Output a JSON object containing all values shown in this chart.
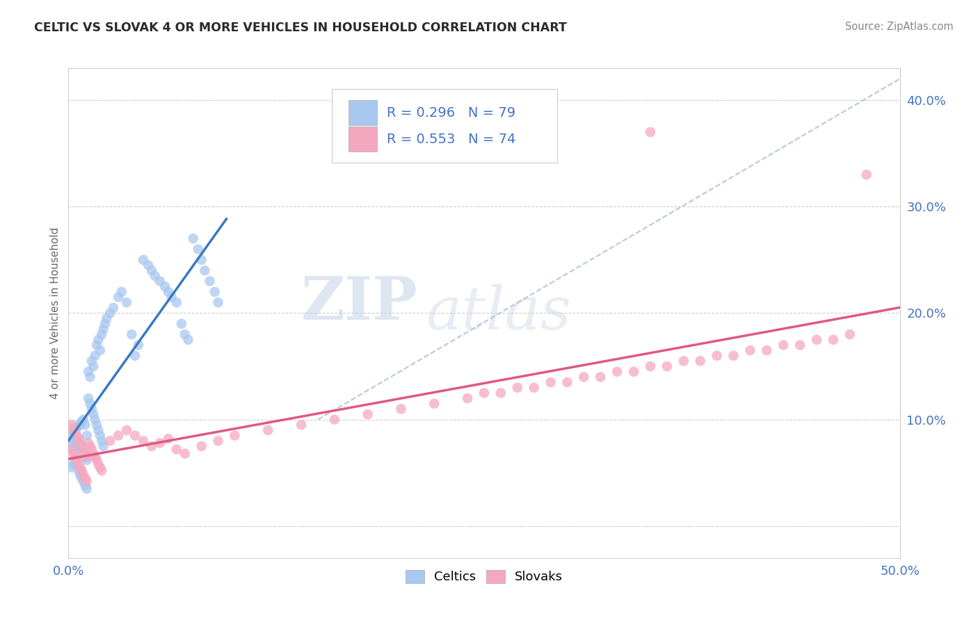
{
  "title": "CELTIC VS SLOVAK 4 OR MORE VEHICLES IN HOUSEHOLD CORRELATION CHART",
  "source": "Source: ZipAtlas.com",
  "ylabel": "4 or more Vehicles in Household",
  "xlim": [
    0.0,
    0.5
  ],
  "ylim": [
    -0.03,
    0.43
  ],
  "celtics_color": "#a8c8f0",
  "slovaks_color": "#f4a8c0",
  "celtics_line_color": "#3a7abf",
  "slovaks_line_color": "#e05880",
  "trend_line_color": "#b8c8d8",
  "legend_R_celtic": "R = 0.296",
  "legend_N_celtic": "N = 79",
  "legend_R_slovak": "R = 0.553",
  "legend_N_slovak": "N = 74",
  "watermark_zip": "ZIP",
  "watermark_atlas": "atlas",
  "celtics_x": [
    0.002,
    0.003,
    0.004,
    0.005,
    0.006,
    0.007,
    0.008,
    0.009,
    0.01,
    0.011,
    0.002,
    0.003,
    0.004,
    0.005,
    0.006,
    0.007,
    0.008,
    0.009,
    0.01,
    0.011,
    0.002,
    0.003,
    0.004,
    0.005,
    0.006,
    0.007,
    0.008,
    0.009,
    0.01,
    0.011,
    0.012,
    0.013,
    0.014,
    0.015,
    0.016,
    0.017,
    0.018,
    0.019,
    0.02,
    0.021,
    0.012,
    0.013,
    0.014,
    0.015,
    0.016,
    0.017,
    0.018,
    0.019,
    0.02,
    0.021,
    0.022,
    0.023,
    0.025,
    0.027,
    0.03,
    0.032,
    0.035,
    0.038,
    0.04,
    0.042,
    0.045,
    0.048,
    0.05,
    0.052,
    0.055,
    0.058,
    0.06,
    0.062,
    0.065,
    0.068,
    0.07,
    0.072,
    0.075,
    0.078,
    0.08,
    0.082,
    0.085,
    0.088,
    0.09
  ],
  "celtics_y": [
    0.085,
    0.088,
    0.09,
    0.092,
    0.094,
    0.096,
    0.098,
    0.1,
    0.095,
    0.085,
    0.075,
    0.078,
    0.08,
    0.082,
    0.072,
    0.074,
    0.076,
    0.068,
    0.065,
    0.062,
    0.055,
    0.058,
    0.06,
    0.062,
    0.052,
    0.048,
    0.045,
    0.042,
    0.038,
    0.035,
    0.12,
    0.115,
    0.11,
    0.105,
    0.1,
    0.095,
    0.09,
    0.085,
    0.08,
    0.075,
    0.145,
    0.14,
    0.155,
    0.15,
    0.16,
    0.17,
    0.175,
    0.165,
    0.18,
    0.185,
    0.19,
    0.195,
    0.2,
    0.205,
    0.215,
    0.22,
    0.21,
    0.18,
    0.16,
    0.17,
    0.25,
    0.245,
    0.24,
    0.235,
    0.23,
    0.225,
    0.22,
    0.215,
    0.21,
    0.19,
    0.18,
    0.175,
    0.27,
    0.26,
    0.25,
    0.24,
    0.23,
    0.22,
    0.21
  ],
  "slovaks_x": [
    0.002,
    0.003,
    0.004,
    0.005,
    0.006,
    0.007,
    0.008,
    0.009,
    0.01,
    0.011,
    0.002,
    0.003,
    0.004,
    0.005,
    0.006,
    0.007,
    0.008,
    0.009,
    0.01,
    0.011,
    0.012,
    0.013,
    0.014,
    0.015,
    0.016,
    0.017,
    0.018,
    0.019,
    0.02,
    0.025,
    0.03,
    0.035,
    0.04,
    0.045,
    0.05,
    0.055,
    0.06,
    0.065,
    0.07,
    0.08,
    0.09,
    0.1,
    0.12,
    0.14,
    0.16,
    0.18,
    0.2,
    0.22,
    0.24,
    0.26,
    0.28,
    0.3,
    0.32,
    0.34,
    0.36,
    0.38,
    0.4,
    0.42,
    0.44,
    0.46,
    0.25,
    0.27,
    0.29,
    0.31,
    0.33,
    0.35,
    0.37,
    0.39,
    0.41,
    0.43,
    0.45,
    0.47,
    0.35,
    0.48
  ],
  "slovaks_y": [
    0.072,
    0.068,
    0.065,
    0.062,
    0.058,
    0.055,
    0.052,
    0.048,
    0.045,
    0.042,
    0.095,
    0.092,
    0.088,
    0.085,
    0.082,
    0.078,
    0.075,
    0.072,
    0.068,
    0.065,
    0.078,
    0.075,
    0.072,
    0.068,
    0.065,
    0.062,
    0.058,
    0.055,
    0.052,
    0.08,
    0.085,
    0.09,
    0.085,
    0.08,
    0.075,
    0.078,
    0.082,
    0.072,
    0.068,
    0.075,
    0.08,
    0.085,
    0.09,
    0.095,
    0.1,
    0.105,
    0.11,
    0.115,
    0.12,
    0.125,
    0.13,
    0.135,
    0.14,
    0.145,
    0.15,
    0.155,
    0.16,
    0.165,
    0.17,
    0.175,
    0.125,
    0.13,
    0.135,
    0.14,
    0.145,
    0.15,
    0.155,
    0.16,
    0.165,
    0.17,
    0.175,
    0.18,
    0.37,
    0.33
  ]
}
